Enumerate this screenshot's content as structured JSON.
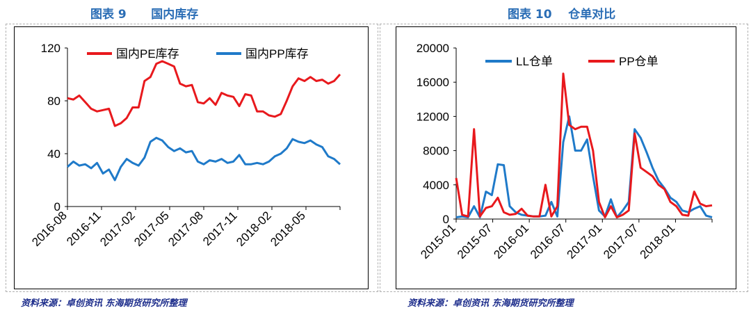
{
  "figures": [
    {
      "title": "图表 9      国内库存",
      "source": "资料来源：卓创资讯 东海期货研究所整理",
      "chart_data": {
        "type": "line",
        "ylim": [
          0,
          120
        ],
        "yticks": [
          0,
          40,
          80,
          120
        ],
        "xticks": [
          "2016-08",
          "2016-11",
          "2017-02",
          "2017-05",
          "2017-08",
          "2017-11",
          "2018-02",
          "2018-05"
        ],
        "xlim": [
          0,
          23
        ],
        "legend_position": "top",
        "grid": false,
        "series": [
          {
            "name": "国内PE库存",
            "color": "#e8191d",
            "x": [
              0,
              0.5,
              1,
              1.5,
              2,
              2.5,
              3,
              3.5,
              4,
              4.5,
              5,
              5.5,
              6,
              6.5,
              7,
              7.5,
              8,
              8.5,
              9,
              9.5,
              10,
              10.5,
              11,
              11.5,
              12,
              12.5,
              13,
              13.5,
              14,
              14.5,
              15,
              15.5,
              16,
              16.5,
              17,
              17.5,
              18,
              18.5,
              19,
              19.5,
              20,
              20.5,
              21,
              21.5,
              22,
              22.5,
              23
            ],
            "values": [
              82,
              81,
              84,
              79,
              74,
              72,
              73,
              74,
              61,
              63,
              67,
              75,
              75,
              95,
              98,
              108,
              110,
              108,
              106,
              93,
              91,
              92,
              79,
              78,
              82,
              77,
              86,
              84,
              83,
              76,
              85,
              84,
              72,
              72,
              69,
              68,
              70,
              80,
              91,
              97,
              95,
              98,
              95,
              96,
              93,
              95,
              100
            ]
          },
          {
            "name": "国内PP库存",
            "color": "#1f7ac9",
            "x": [
              0,
              0.5,
              1,
              1.5,
              2,
              2.5,
              3,
              3.5,
              4,
              4.5,
              5,
              5.5,
              6,
              6.5,
              7,
              7.5,
              8,
              8.5,
              9,
              9.5,
              10,
              10.5,
              11,
              11.5,
              12,
              12.5,
              13,
              13.5,
              14,
              14.5,
              15,
              15.5,
              16,
              16.5,
              17,
              17.5,
              18,
              18.5,
              19,
              19.5,
              20,
              20.5,
              21,
              21.5,
              22,
              22.5,
              23
            ],
            "values": [
              30,
              34,
              31,
              32,
              29,
              33,
              25,
              28,
              20,
              30,
              36,
              33,
              31,
              37,
              49,
              52,
              50,
              45,
              42,
              44,
              41,
              42,
              34,
              32,
              35,
              34,
              36,
              33,
              34,
              39,
              32,
              32,
              33,
              32,
              34,
              38,
              40,
              44,
              51,
              49,
              48,
              50,
              47,
              45,
              38,
              36,
              32
            ]
          }
        ]
      }
    },
    {
      "title": "图表 10    仓单对比",
      "source": "资料来源：卓创资讯 东海期货研究所整理",
      "chart_data": {
        "type": "line",
        "ylim": [
          0,
          20000
        ],
        "yticks": [
          0,
          4000,
          8000,
          12000,
          16000,
          20000
        ],
        "xticks": [
          "2015-01",
          "2015-07",
          "2016-01",
          "2016-07",
          "2017-01",
          "2017-07",
          "2018-01"
        ],
        "xlim": [
          0,
          43
        ],
        "legend_position": "top",
        "grid": false,
        "series": [
          {
            "name": "LL仓单",
            "color": "#1f7ac9",
            "x": [
              0,
              1,
              2,
              3,
              4,
              5,
              6,
              7,
              8,
              9,
              10,
              11,
              12,
              13,
              14,
              15,
              16,
              17,
              18,
              19,
              20,
              21,
              22,
              23,
              24,
              25,
              26,
              27,
              28,
              29,
              30,
              31,
              32,
              33,
              34,
              35,
              36,
              37,
              38,
              39,
              40,
              41,
              42,
              43
            ],
            "values": [
              200,
              300,
              200,
              1500,
              200,
              3200,
              2800,
              6400,
              6300,
              1500,
              800,
              500,
              400,
              300,
              300,
              400,
              2000,
              300,
              9000,
              12000,
              8000,
              8000,
              9300,
              5000,
              1000,
              300,
              2300,
              200,
              1000,
              2000,
              10500,
              9500,
              7800,
              6000,
              4500,
              3600,
              2500,
              2000,
              1000,
              800,
              1200,
              1500,
              400,
              200
            ]
          },
          {
            "name": "PP仓单",
            "color": "#e8191d",
            "x": [
              0,
              1,
              2,
              3,
              4,
              5,
              6,
              7,
              8,
              9,
              10,
              11,
              12,
              13,
              14,
              15,
              16,
              17,
              18,
              19,
              20,
              21,
              22,
              23,
              24,
              25,
              26,
              27,
              28,
              29,
              30,
              31,
              32,
              33,
              34,
              35,
              36,
              37,
              38,
              39,
              40,
              41,
              42,
              43
            ],
            "values": [
              4800,
              500,
              300,
              10500,
              300,
              1300,
              1500,
              2500,
              800,
              500,
              600,
              1200,
              400,
              300,
              300,
              4000,
              300,
              1500,
              17000,
              11000,
              10500,
              10800,
              10800,
              8000,
              2000,
              200,
              1500,
              200,
              500,
              1000,
              10000,
              6000,
              5500,
              5000,
              4000,
              3500,
              2000,
              1500,
              500,
              400,
              3200,
              1800,
              1500,
              1600
            ]
          }
        ]
      }
    }
  ]
}
